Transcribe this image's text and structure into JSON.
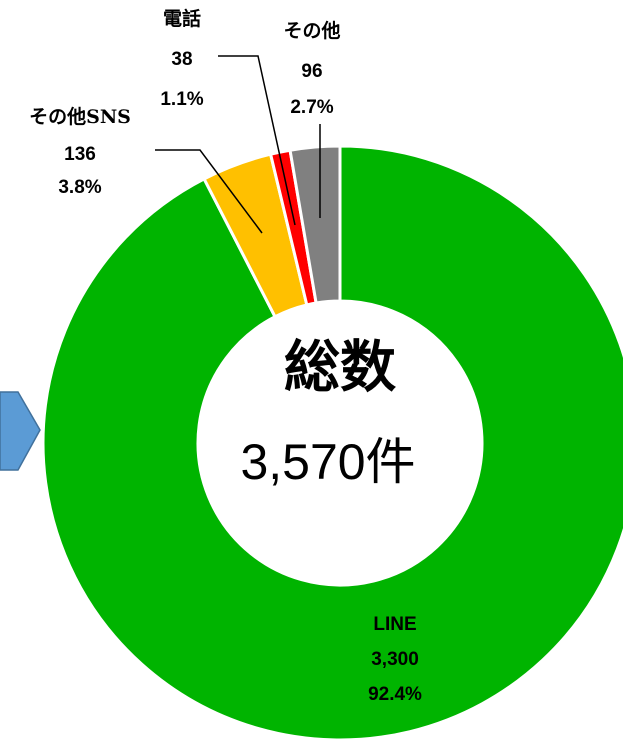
{
  "chart_data": {
    "type": "donut",
    "categories": [
      "LINE",
      "その他SNS",
      "電話",
      "その他"
    ],
    "values": [
      3300,
      136,
      38,
      96
    ],
    "value_labels": [
      "3,300",
      "136",
      "38",
      "96"
    ],
    "percentages": [
      92.4,
      3.8,
      1.1,
      2.7
    ],
    "percentage_labels": [
      "92.4%",
      "3.8%",
      "1.1%",
      "2.7%"
    ],
    "colors": [
      "#00b400",
      "#ffc000",
      "#ff0000",
      "#808080"
    ],
    "center_title": "総数",
    "total": 3570,
    "total_label": "3,570件"
  }
}
